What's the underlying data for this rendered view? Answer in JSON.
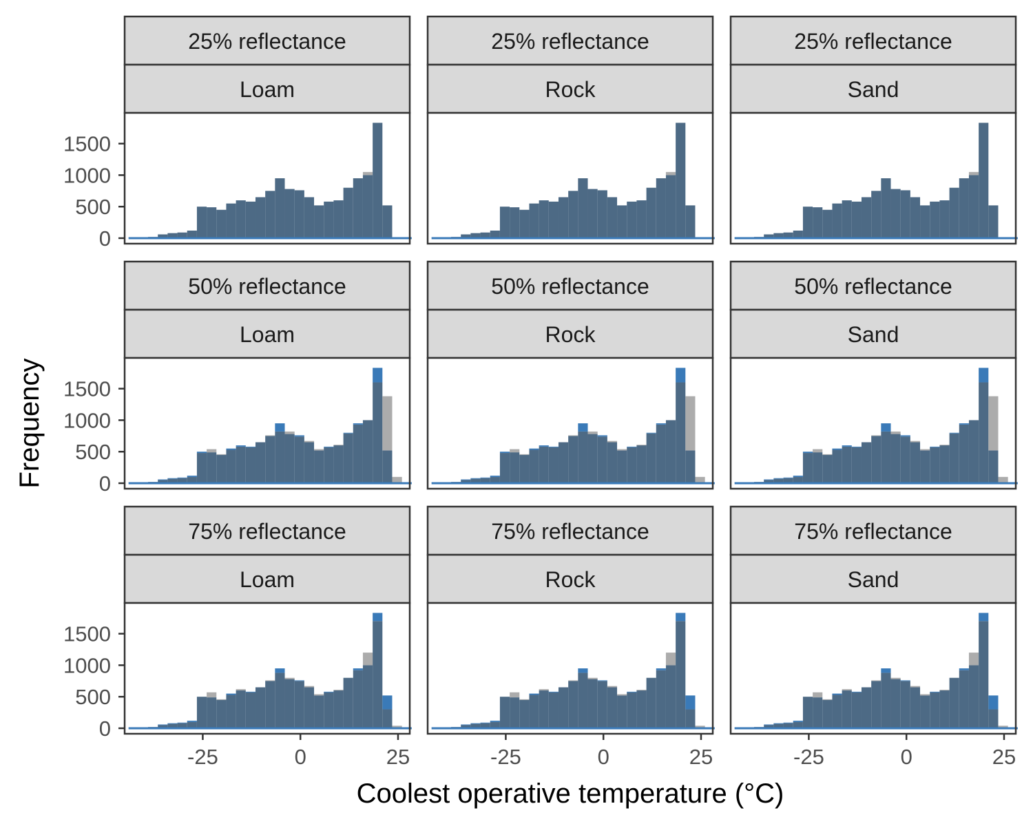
{
  "chart_data": {
    "type": "bar",
    "xlabel": "Coolest operative temperature (°C)",
    "ylabel": "Frequency",
    "xlim": [
      -45,
      28
    ],
    "ylim": [
      0,
      1900
    ],
    "x_ticks": [
      -25,
      0,
      25
    ],
    "x_tick_labels": [
      "-25",
      "0",
      "25"
    ],
    "y_ticks": [
      0,
      500,
      1000,
      1500
    ],
    "y_tick_labels": [
      "0",
      "500",
      "1000",
      "1500"
    ],
    "bin_starts": [
      -44,
      -41.5,
      -39,
      -36.5,
      -34,
      -31.5,
      -29,
      -26.5,
      -24,
      -21.5,
      -19,
      -16.5,
      -14,
      -11.5,
      -9,
      -6.5,
      -4,
      -1.5,
      1,
      3.5,
      6,
      8.5,
      11,
      13.5,
      16,
      18.5,
      21,
      23.5,
      26
    ],
    "bin_width": 2.5,
    "row_labels": [
      "25% reflectance",
      "50% reflectance",
      "75% reflectance"
    ],
    "col_labels": [
      "Loam",
      "Rock",
      "Sand"
    ],
    "series_colors": {
      "blue": "#3a7ab8",
      "gray": "#9e9e9e",
      "overlap": "#4d6a85"
    },
    "grid": false,
    "blue_values": [
      5,
      10,
      20,
      60,
      80,
      90,
      120,
      500,
      490,
      450,
      550,
      600,
      580,
      650,
      750,
      950,
      780,
      760,
      650,
      520,
      580,
      600,
      800,
      950,
      1000,
      1830,
      520,
      10,
      0
    ],
    "gray_values_by_row": [
      [
        5,
        10,
        20,
        60,
        80,
        90,
        120,
        500,
        490,
        450,
        550,
        600,
        580,
        650,
        750,
        950,
        780,
        760,
        650,
        520,
        580,
        600,
        800,
        950,
        1050,
        1830,
        520,
        10,
        0
      ],
      [
        5,
        10,
        20,
        50,
        70,
        80,
        100,
        480,
        540,
        460,
        530,
        580,
        570,
        650,
        760,
        820,
        820,
        740,
        670,
        540,
        570,
        610,
        790,
        930,
        1000,
        1600,
        1380,
        100,
        0
      ],
      [
        5,
        10,
        20,
        50,
        70,
        80,
        100,
        500,
        570,
        460,
        530,
        620,
        570,
        650,
        760,
        880,
        800,
        750,
        670,
        540,
        570,
        610,
        800,
        920,
        1200,
        1700,
        300,
        40,
        0
      ]
    ]
  }
}
